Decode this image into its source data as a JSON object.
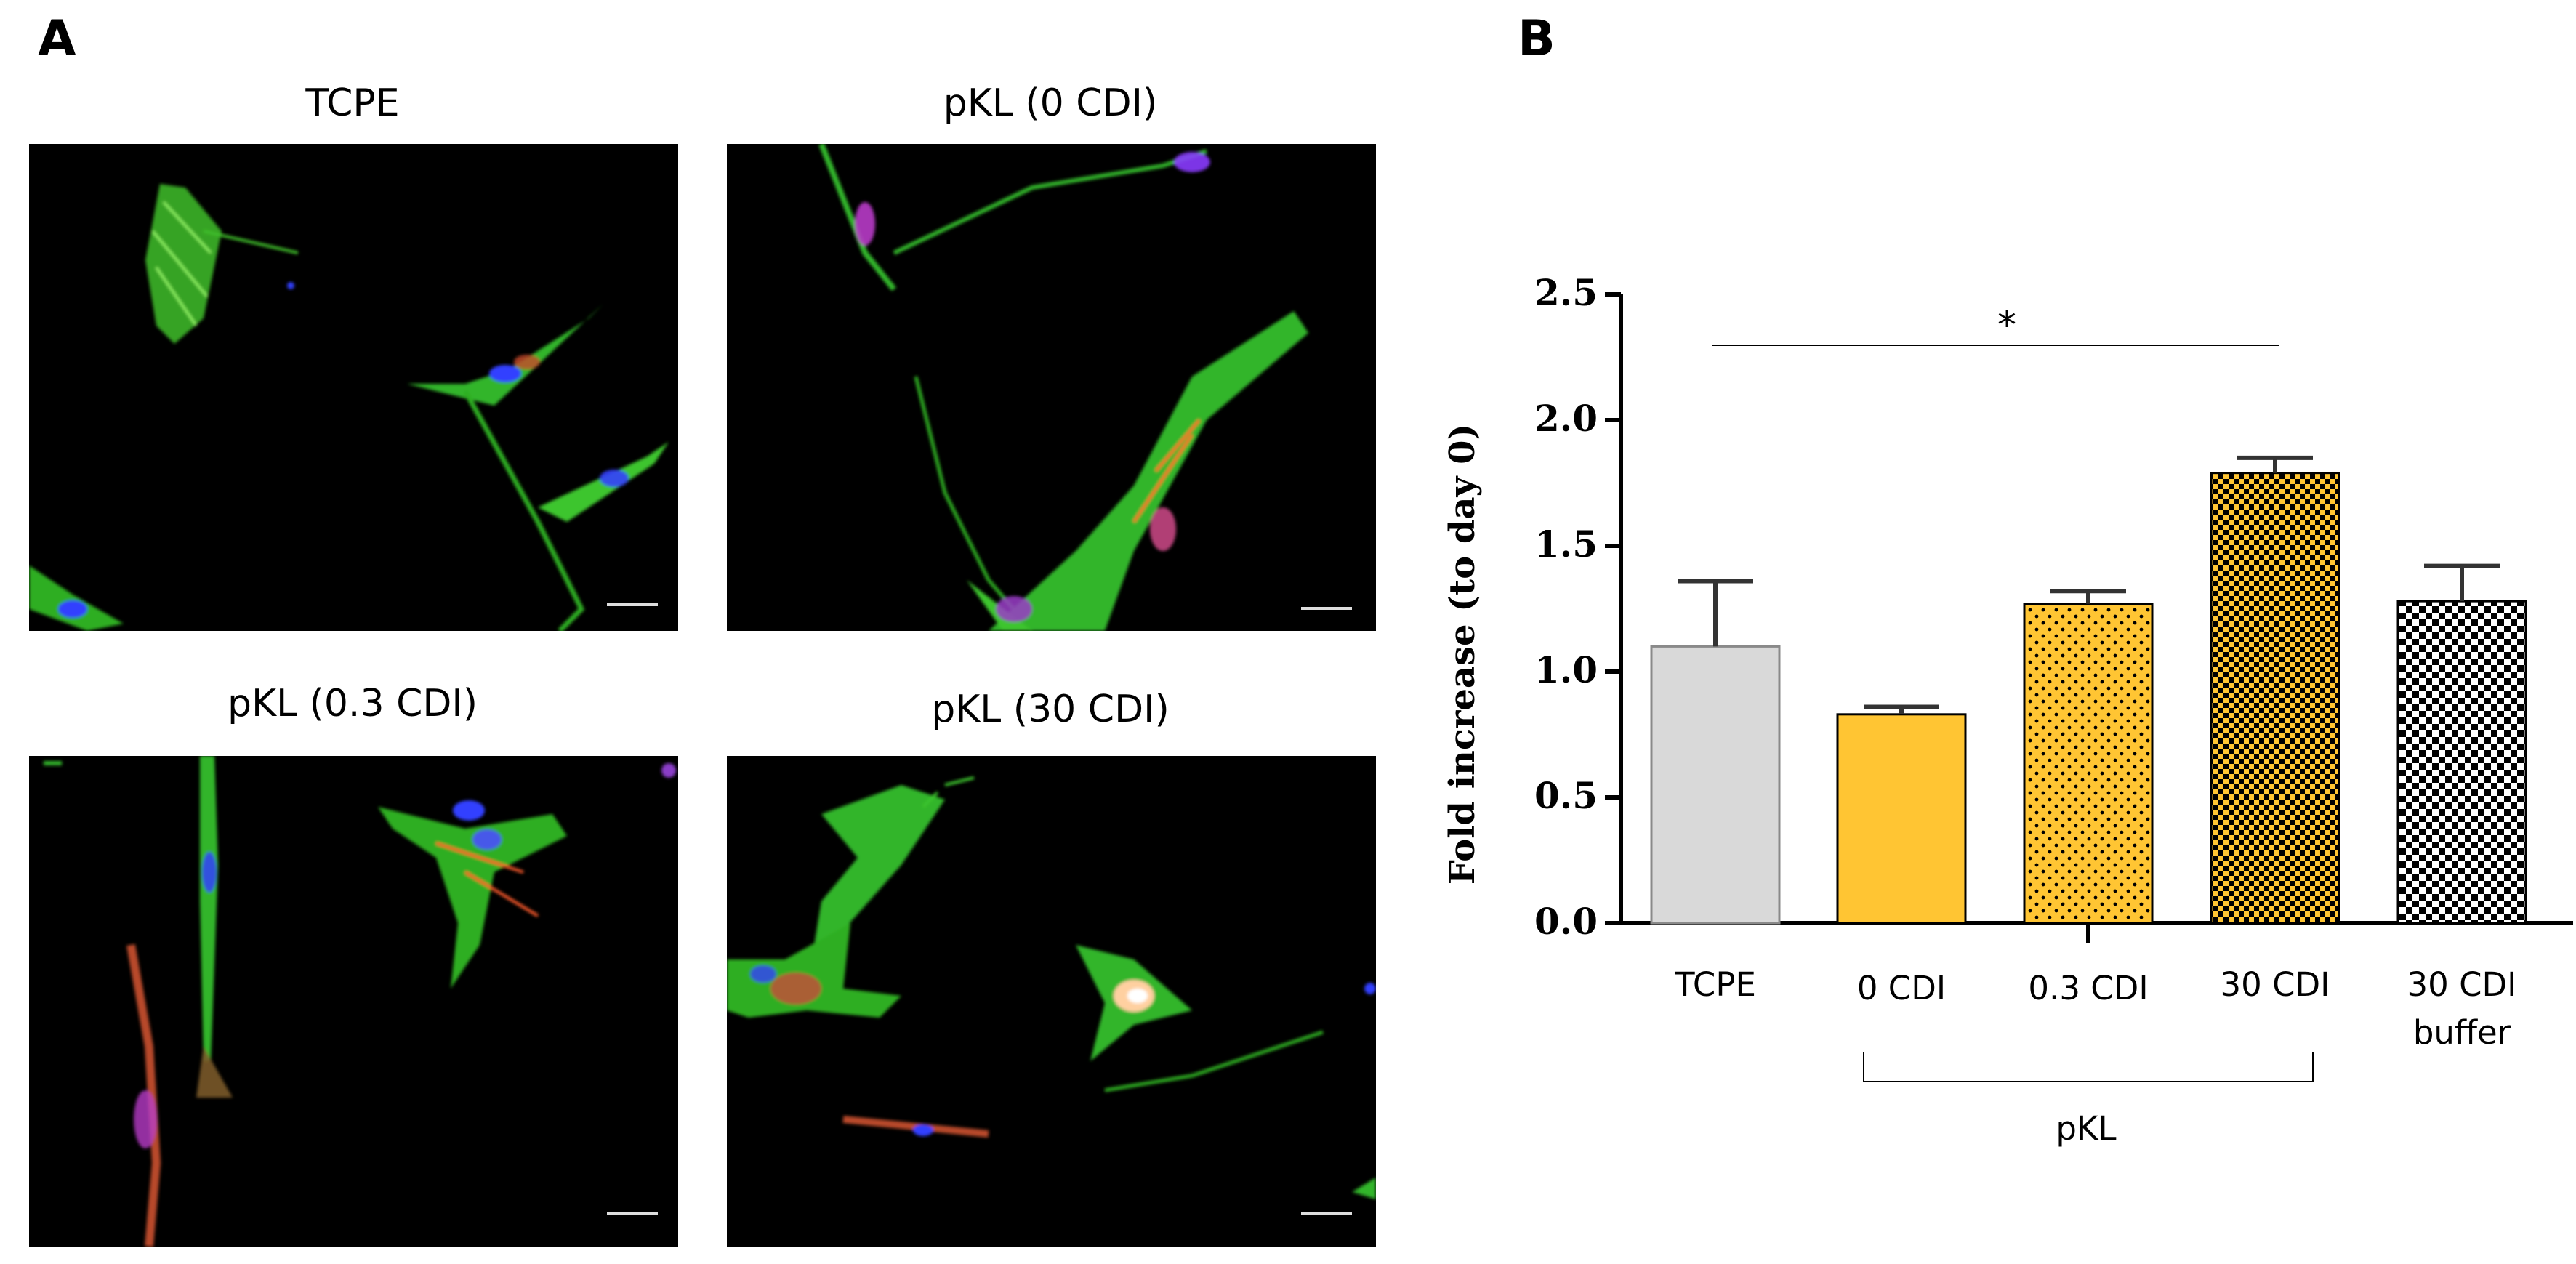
{
  "panels": {
    "a_letter": "A",
    "b_letter": "B"
  },
  "micrographs": [
    {
      "title": "TCPE"
    },
    {
      "title": "pKL (0 CDI)"
    },
    {
      "title": "pKL (0.3 CDI)"
    },
    {
      "title": "pKL (30 CDI)"
    }
  ],
  "chart_data": {
    "type": "bar",
    "ylabel": "Fold increase (to day 0)",
    "ylim": [
      0,
      2.5
    ],
    "yticks": [
      "0.0",
      "0.5",
      "1.0",
      "1.5",
      "2.0",
      "2.5"
    ],
    "categories": [
      {
        "line1": "TCPE",
        "line2": ""
      },
      {
        "line1": "0 CDI",
        "line2": ""
      },
      {
        "line1": "0.3 CDI",
        "line2": ""
      },
      {
        "line1": "30 CDI",
        "line2": ""
      },
      {
        "line1": "30 CDI",
        "line2": "buffer"
      }
    ],
    "values": [
      1.1,
      0.83,
      1.27,
      1.79,
      1.28
    ],
    "errors": [
      0.26,
      0.03,
      0.05,
      0.06,
      0.14
    ],
    "fills": [
      "light-gray",
      "solid-orange",
      "dotted-orange",
      "checkered-orange",
      "checkered-black-white"
    ],
    "colors": {
      "gray": "#d9d9d9",
      "orange": "#ffc533",
      "black": "#000000"
    },
    "significance": {
      "from": 0,
      "to": 3,
      "label": "*"
    },
    "group_bracket": {
      "from": 1,
      "to": 3,
      "label": "pKL"
    }
  }
}
